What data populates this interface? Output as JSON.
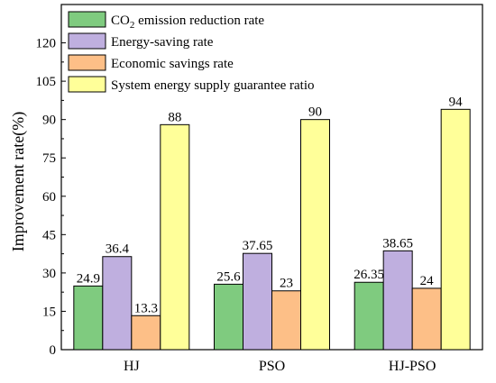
{
  "chart_data": {
    "type": "bar",
    "categories": [
      "HJ",
      "PSO",
      "HJ-PSO"
    ],
    "series": [
      {
        "name": "CO2 emission reduction rate",
        "name_base": "CO",
        "name_sub": "2",
        "name_rest": " emission reduction rate",
        "color": "#7fcb7f",
        "values": [
          24.9,
          25.6,
          26.35
        ],
        "labels": [
          "24.9",
          "25.6",
          "26.35"
        ]
      },
      {
        "name": "Energy-saving rate",
        "color": "#bfafdf",
        "values": [
          36.4,
          37.65,
          38.65
        ],
        "labels": [
          "36.4",
          "37.65",
          "38.65"
        ]
      },
      {
        "name": "Economic savings rate",
        "color": "#fdbf87",
        "values": [
          13.3,
          23,
          24
        ],
        "labels": [
          "13.3",
          "23",
          "24"
        ]
      },
      {
        "name": "System energy supply guarantee ratio",
        "color": "#ffff99",
        "values": [
          88,
          90,
          94
        ],
        "labels": [
          "88",
          "90",
          "94"
        ]
      }
    ],
    "ylabel": "Improvement rate(%)",
    "ylim": [
      0,
      135
    ],
    "yticks": [
      0,
      15,
      30,
      45,
      60,
      75,
      90,
      105,
      120
    ],
    "grid": false,
    "legend_position": "top-left"
  }
}
